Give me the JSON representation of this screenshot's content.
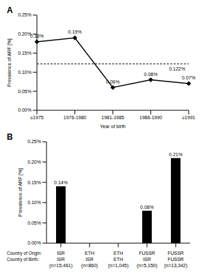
{
  "chart_data": [
    {
      "type": "line",
      "title": "A",
      "x_label": "Year of birth",
      "y_label": "Prevalence of ARF [%]",
      "categories": [
        "≤1975",
        "1976-1980",
        "1981-1985",
        "1986-1990",
        "≥1991"
      ],
      "values": [
        0.18,
        0.19,
        0.06,
        0.08,
        0.07
      ],
      "value_labels": [
        "0.18%",
        "0.19%",
        "0.06%",
        "0.08%",
        "0.07%"
      ],
      "data_labels": true,
      "color": "#000000",
      "marker": "diamond",
      "line_style": "solid",
      "grid": false,
      "ylim": [
        0,
        0.25
      ],
      "yticks": [
        {
          "value": 0,
          "label": "0.00%"
        },
        {
          "value": 0.05,
          "label": "0.05%"
        },
        {
          "value": 0.1,
          "label": "0.10%"
        },
        {
          "value": 0.15,
          "label": "0.15%"
        },
        {
          "value": 0.2,
          "label": "0.20%"
        },
        {
          "value": 0.25,
          "label": "0.25%"
        }
      ],
      "hline": {
        "value": 0.122,
        "label": "0.122%",
        "line_style": "dashed"
      }
    },
    {
      "type": "bar",
      "title": "B",
      "y_label": "Prevalence of ARF [%]",
      "row_labels": [
        "Country of Origin:",
        "Country of Birth:"
      ],
      "categories": [
        "ISR",
        "ETH",
        "ETH",
        "FUSSR",
        "FUSSR"
      ],
      "country_of_birth": [
        "ISR",
        "ISR",
        "ETH",
        "ISR",
        "FUSSR"
      ],
      "group_sizes": [
        "(n=15,461)",
        "(n=860)",
        "(n=1,045)",
        "(n=5,150)",
        "(n=13,342)"
      ],
      "values": [
        0.14,
        0,
        0,
        0.08,
        0.21
      ],
      "value_labels": [
        "0.14%",
        null,
        null,
        "0.08%",
        "0.21%"
      ],
      "data_labels": true,
      "color": "#000000",
      "grid": false,
      "ylim": [
        0,
        0.25
      ],
      "yticks": [
        {
          "value": 0,
          "label": "0.00%"
        },
        {
          "value": 0.05,
          "label": "0.05%"
        },
        {
          "value": 0.1,
          "label": "0.10%"
        },
        {
          "value": 0.15,
          "label": "0.15%"
        },
        {
          "value": 0.2,
          "label": "0.20%"
        },
        {
          "value": 0.25,
          "label": "0.25%"
        }
      ]
    }
  ]
}
